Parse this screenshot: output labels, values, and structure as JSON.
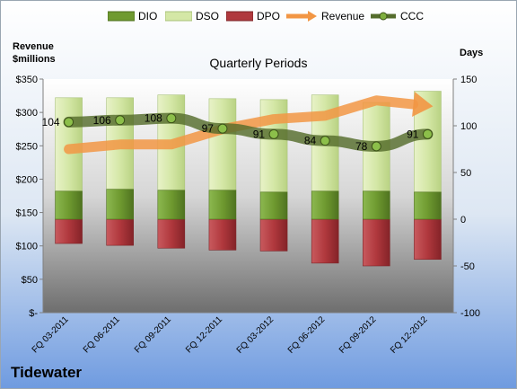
{
  "legend": {
    "dio": "DIO",
    "dso": "DSO",
    "dpo": "DPO",
    "revenue": "Revenue",
    "ccc": "CCC"
  },
  "left_axis_title": [
    "Revenue",
    "$millions"
  ],
  "right_axis_title": "Days",
  "company": "Tidewater",
  "colors": {
    "dio": "#6f9a30",
    "dso": "#d4e7a6",
    "dpo": "#b0383d",
    "revenue": "#f29644",
    "ccc": "#556d2c"
  },
  "chart_data": {
    "type": "bar",
    "title": "Quarterly Periods",
    "categories": [
      "FQ 03-2011",
      "FQ 06-2011",
      "FQ 09-2011",
      "FQ 12-2011",
      "FQ 03-2012",
      "FQ 06-2012",
      "FQ 09-2012",
      "FQ 12-2012"
    ],
    "series": [
      {
        "name": "DIO",
        "axis": "right",
        "values": [
          30,
          32,
          31,
          31,
          29,
          30,
          30,
          29
        ]
      },
      {
        "name": "DSO",
        "axis": "right",
        "values": [
          100,
          98,
          102,
          98,
          99,
          103,
          95,
          108
        ]
      },
      {
        "name": "DPO",
        "axis": "right",
        "values": [
          -26,
          -28,
          -31,
          -33,
          -34,
          -47,
          -50,
          -43
        ]
      },
      {
        "name": "Revenue",
        "axis": "left",
        "type": "line",
        "values": [
          245,
          252,
          252,
          275,
          290,
          295,
          318,
          310
        ]
      },
      {
        "name": "CCC",
        "axis": "right",
        "type": "line",
        "values": [
          104,
          106,
          108,
          97,
          91,
          84,
          78,
          91
        ]
      }
    ],
    "ccc_labels": [
      "104",
      "106",
      "108",
      "97",
      "91",
      "84",
      "78",
      "91"
    ],
    "left_axis": {
      "ylim": [
        0,
        350
      ],
      "ticks": [
        "$-",
        "$50",
        "$100",
        "$150",
        "$200",
        "$250",
        "$300",
        "$350"
      ]
    },
    "right_axis": {
      "ylim": [
        -100,
        150
      ],
      "ticks": [
        "-100",
        "-50",
        "0",
        "50",
        "100",
        "150"
      ]
    }
  }
}
